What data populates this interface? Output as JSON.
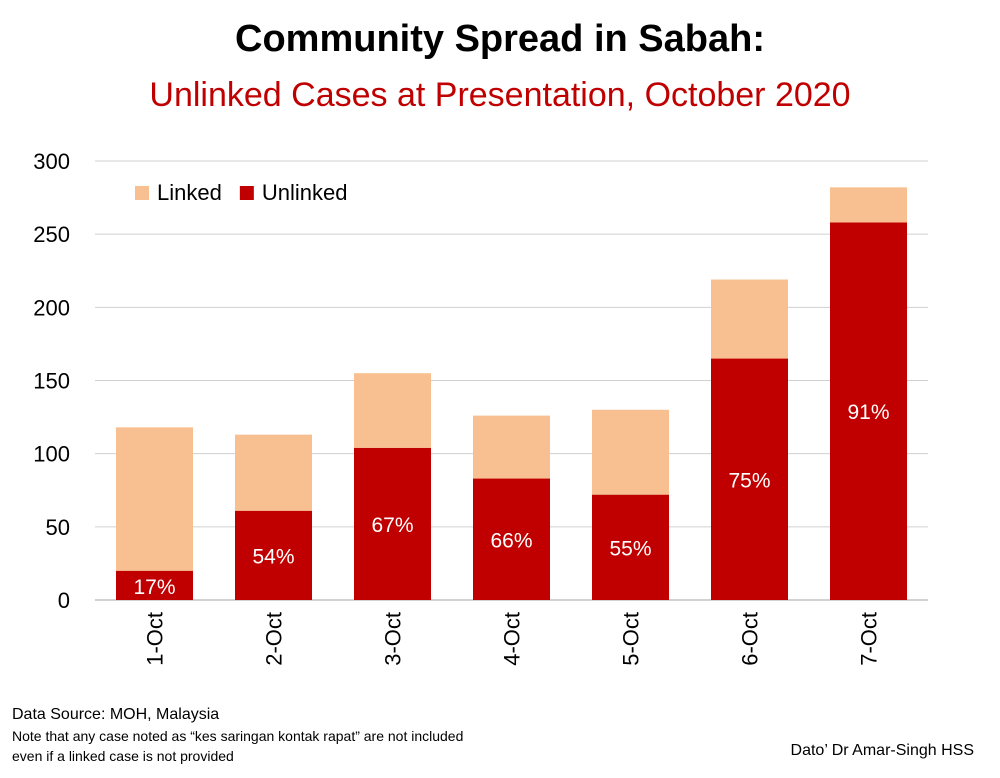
{
  "chart_data": {
    "type": "bar",
    "stacked": true,
    "title": "Community Spread in Sabah:",
    "subtitle": "Unlinked Cases at Presentation, October 2020",
    "categories": [
      "1-Oct",
      "2-Oct",
      "3-Oct",
      "4-Oct",
      "5-Oct",
      "6-Oct",
      "7-Oct"
    ],
    "series": [
      {
        "name": "Unlinked",
        "color": "#c00000",
        "values": [
          20,
          61,
          104,
          83,
          72,
          165,
          258
        ]
      },
      {
        "name": "Linked",
        "color": "#f8c090",
        "values": [
          98,
          52,
          51,
          43,
          58,
          54,
          24
        ]
      }
    ],
    "data_labels": [
      "17%",
      "54%",
      "67%",
      "66%",
      "55%",
      "75%",
      "91%"
    ],
    "ylim": [
      0,
      300
    ],
    "yticks": [
      0,
      50,
      100,
      150,
      200,
      250,
      300
    ],
    "grid": true,
    "legend": {
      "position": "top-left",
      "order": [
        "Linked",
        "Unlinked"
      ]
    },
    "xlabel": "",
    "ylabel": ""
  },
  "footer": {
    "source": "Data Source: MOH, Malaysia",
    "note_line1": "Note that any case noted as “kes saringan kontak rapat” are not included",
    "note_line2": "even if a linked case is not provided",
    "credit": "Dato’ Dr Amar-Singh HSS"
  }
}
